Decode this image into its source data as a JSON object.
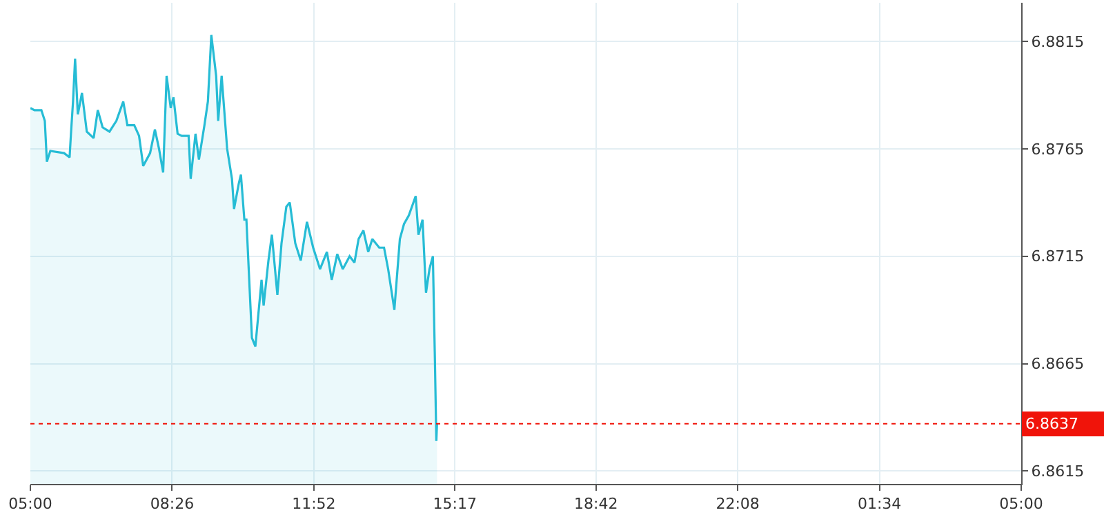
{
  "chart_data": {
    "type": "area",
    "x": [
      "2000-01-01T05:00",
      "2000-01-01T05:06",
      "2000-01-01T05:16",
      "2000-01-01T05:21",
      "2000-01-01T05:24",
      "2000-01-01T05:29",
      "2000-01-01T05:49",
      "2000-01-01T05:57",
      "2000-01-01T05:59",
      "2000-01-01T06:02",
      "2000-01-01T06:05",
      "2000-01-01T06:09",
      "2000-01-01T06:15",
      "2000-01-01T06:22",
      "2000-01-01T06:32",
      "2000-01-01T06:38",
      "2000-01-01T06:45",
      "2000-01-01T06:55",
      "2000-01-01T07:05",
      "2000-01-01T07:15",
      "2000-01-01T07:21",
      "2000-01-01T07:31",
      "2000-01-01T07:38",
      "2000-01-01T07:44",
      "2000-01-01T07:54",
      "2000-01-01T08:01",
      "2000-01-01T08:07",
      "2000-01-01T08:13",
      "2000-01-01T08:18",
      "2000-01-01T08:24",
      "2000-01-01T08:28",
      "2000-01-01T08:34",
      "2000-01-01T08:40",
      "2000-01-01T08:50",
      "2000-01-01T08:53",
      "2000-01-01T09:00",
      "2000-01-01T09:05",
      "2000-01-01T09:13",
      "2000-01-01T09:18",
      "2000-01-01T09:23",
      "2000-01-01T09:30",
      "2000-01-01T09:33",
      "2000-01-01T09:38",
      "2000-01-01T09:46",
      "2000-01-01T09:53",
      "2000-01-01T09:56",
      "2000-01-01T10:03",
      "2000-01-01T10:06",
      "2000-01-01T10:11",
      "2000-01-01T10:14",
      "2000-01-01T10:22",
      "2000-01-01T10:27",
      "2000-01-01T10:36",
      "2000-01-01T10:39",
      "2000-01-01T10:46",
      "2000-01-01T10:51",
      "2000-01-01T10:59",
      "2000-01-01T11:05",
      "2000-01-01T11:12",
      "2000-01-01T11:17",
      "2000-01-01T11:25",
      "2000-01-01T11:33",
      "2000-01-01T11:42",
      "2000-01-01T11:51",
      "2000-01-01T12:01",
      "2000-01-01T12:11",
      "2000-01-01T12:18",
      "2000-01-01T12:26",
      "2000-01-01T12:34",
      "2000-01-01T12:44",
      "2000-01-01T12:51",
      "2000-01-01T12:57",
      "2000-01-01T13:04",
      "2000-01-01T13:11",
      "2000-01-01T13:17",
      "2000-01-01T13:27",
      "2000-01-01T13:34",
      "2000-01-01T13:40",
      "2000-01-01T13:49",
      "2000-01-01T13:57",
      "2000-01-01T14:03",
      "2000-01-01T14:10",
      "2000-01-01T14:20",
      "2000-01-01T14:24",
      "2000-01-01T14:30",
      "2000-01-01T14:35",
      "2000-01-01T14:40",
      "2000-01-01T14:45",
      "2000-01-01T14:48",
      "2000-01-01T14:50",
      "2000-01-01T14:51"
    ],
    "series": [
      {
        "color": "#26bcd5",
        "values": [
          6.8784,
          6.8783,
          6.8783,
          6.8778,
          6.8759,
          6.8764,
          6.8763,
          6.8761,
          6.8772,
          6.8787,
          6.8807,
          6.8781,
          6.8791,
          6.8773,
          6.877,
          6.8783,
          6.8775,
          6.8773,
          6.8778,
          6.8787,
          6.8776,
          6.8776,
          6.8771,
          6.8757,
          6.8763,
          6.8774,
          6.8765,
          6.8754,
          6.8799,
          6.8784,
          6.8789,
          6.8772,
          6.8771,
          6.8771,
          6.8751,
          6.8772,
          6.876,
          6.8776,
          6.8787,
          6.8818,
          6.8799,
          6.8778,
          6.8799,
          6.8765,
          6.8751,
          6.8737,
          6.8749,
          6.8753,
          6.8732,
          6.8732,
          6.8677,
          6.8673,
          6.8704,
          6.8692,
          6.8713,
          6.8725,
          6.8697,
          6.8721,
          6.8738,
          6.874,
          6.8721,
          6.8713,
          6.8731,
          6.8719,
          6.8709,
          6.8717,
          6.8704,
          6.8716,
          6.8709,
          6.8715,
          6.8712,
          6.8723,
          6.8727,
          6.8717,
          6.8723,
          6.8719,
          6.8719,
          6.8709,
          6.869,
          6.8723,
          6.873,
          6.8734,
          6.8743,
          6.8725,
          6.8732,
          6.8698,
          6.8709,
          6.8715,
          6.8666,
          6.8629,
          6.8637
        ]
      }
    ],
    "xlim": [
      "2000-01-01T05:00",
      "2000-01-02T05:00"
    ],
    "xticks": [
      {
        "value": "2000-01-01T05:00",
        "label": "05:00"
      },
      {
        "value": "2000-01-01T08:26",
        "label": "08:26"
      },
      {
        "value": "2000-01-01T11:52",
        "label": "11:52"
      },
      {
        "value": "2000-01-01T15:17",
        "label": "15:17"
      },
      {
        "value": "2000-01-01T18:42",
        "label": "18:42"
      },
      {
        "value": "2000-01-01T22:08",
        "label": "22:08"
      },
      {
        "value": "2000-01-02T01:34",
        "label": "01:34"
      },
      {
        "value": "2000-01-02T05:00",
        "label": "05:00"
      }
    ],
    "ylim": [
      6.8609,
      6.8833
    ],
    "yticks": [
      6.8615,
      6.8665,
      6.8715,
      6.8765,
      6.8815
    ],
    "ref_lines": [
      {
        "axis": "y",
        "value": 6.8637,
        "label": "6.8637",
        "color": "#f0140a",
        "line_style": "dotted"
      }
    ],
    "grid": true,
    "marker": "none",
    "line_style": "solid"
  }
}
